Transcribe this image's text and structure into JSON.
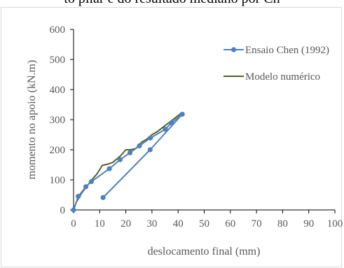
{
  "page": {
    "top_text": "to pilar e do resultado mediano por Ch"
  },
  "chart_data": {
    "type": "line",
    "xlabel": "deslocamento  final (mm)",
    "ylabel": "momento no apoio  (kN.m)",
    "xlim": [
      0,
      100
    ],
    "ylim": [
      0,
      600
    ],
    "xticks": [
      0,
      10,
      20,
      30,
      40,
      50,
      60,
      70,
      80,
      90,
      100
    ],
    "yticks": [
      0,
      100,
      200,
      300,
      400,
      500,
      600
    ],
    "grid": false,
    "legend_position": "top-right",
    "series": [
      {
        "name": "Ensaio Chen (1992)",
        "color": "#4f81bd",
        "marker": "circle",
        "x": [
          0,
          1.8,
          4.7,
          6.8,
          13.7,
          17.8,
          21.6,
          25.2,
          29.4,
          35.1,
          37.4,
          41.6,
          29.3,
          11.3
        ],
        "y": [
          0,
          45,
          77,
          94,
          137,
          167,
          190,
          213,
          239,
          268,
          289,
          318,
          200,
          41
        ]
      },
      {
        "name": "Modelo numérico",
        "color": "#4f6228",
        "marker": "none",
        "x": [
          0,
          1,
          3,
          5,
          7,
          9,
          11,
          13,
          15,
          18,
          20,
          22,
          24,
          26,
          28,
          30,
          32,
          35,
          38,
          41
        ],
        "y": [
          0,
          25,
          55,
          78,
          100,
          120,
          148,
          152,
          158,
          180,
          200,
          200,
          205,
          225,
          235,
          250,
          260,
          280,
          300,
          320
        ]
      }
    ]
  }
}
